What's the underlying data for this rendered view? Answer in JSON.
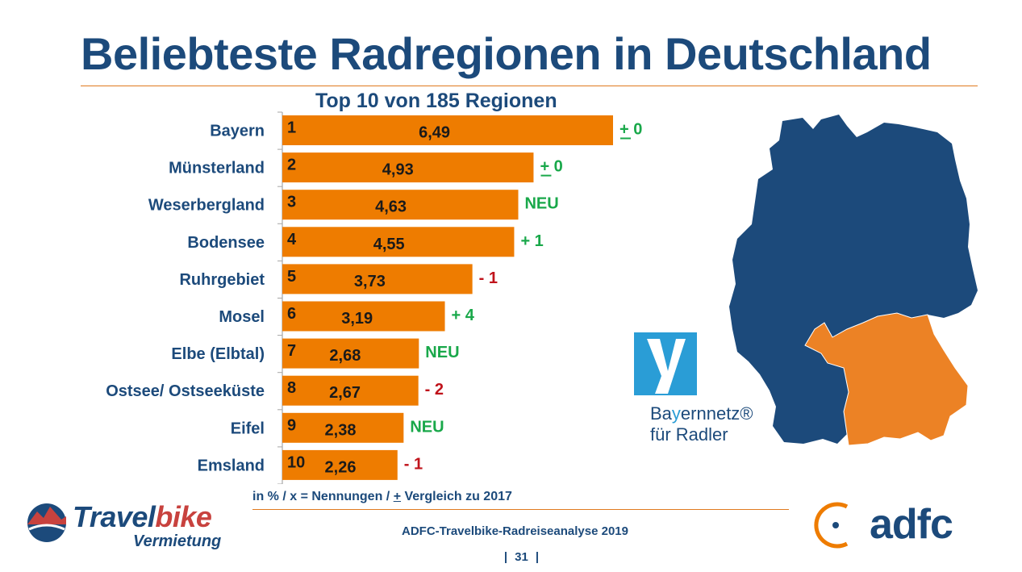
{
  "title": "Beliebteste Radregionen in Deutschland",
  "subtitle": "Top 10 von 185 Regionen",
  "colors": {
    "bar": "#ee7c00",
    "title_blue": "#1c4a7b",
    "positive_green": "#19a84a",
    "negative_red": "#c0131b",
    "map_blue": "#1c4a7b",
    "map_orange": "#ec8225",
    "axis": "#a6a6a6"
  },
  "chart_data": {
    "type": "bar",
    "orientation": "horizontal",
    "categories": [
      "Bayern",
      "Münsterland",
      "Weserbergland",
      "Bodensee",
      "Ruhrgebiet",
      "Mosel",
      "Elbe  (Elbtal)",
      "Ostsee/ Ostseeküste",
      "Eifel",
      "Emsland"
    ],
    "ranks": [
      "1",
      "2",
      "3",
      "4",
      "5",
      "6",
      "7",
      "8",
      "9",
      "10"
    ],
    "values": [
      6.49,
      4.93,
      4.63,
      4.55,
      3.73,
      3.19,
      2.68,
      2.67,
      2.38,
      2.26
    ],
    "value_labels": [
      "6,49",
      "4,93",
      "4,63",
      "4,55",
      "3,73",
      "3,19",
      "2,68",
      "2,67",
      "2,38",
      "2,26"
    ],
    "changes": [
      {
        "text": "+ 0",
        "trend": "same"
      },
      {
        "text": "+ 0",
        "trend": "same"
      },
      {
        "text": "NEU",
        "trend": "new"
      },
      {
        "text": "+ 1",
        "trend": "up"
      },
      {
        "text": "- 1",
        "trend": "down"
      },
      {
        "text": "+ 4",
        "trend": "up"
      },
      {
        "text": "NEU",
        "trend": "new"
      },
      {
        "text": "- 2",
        "trend": "down"
      },
      {
        "text": "NEU",
        "trend": "new"
      },
      {
        "text": "- 1",
        "trend": "down"
      }
    ],
    "xlim": [
      0,
      6.49
    ],
    "grid": false,
    "legend": "none"
  },
  "footnote": {
    "part1": "in % / x = Nennungen / ",
    "part2": "+",
    "part3": " Vergleich zu 2017"
  },
  "source": "ADFC-Travelbike-Radreiseanalyse 2019",
  "page": {
    "left_sep": "|",
    "number": "31",
    "right_sep": "|"
  },
  "logos": {
    "travelbike": {
      "word_a": "Travel",
      "word_b": "bike",
      "sub": "Vermietung"
    },
    "adfc": {
      "word": "adfc"
    },
    "bayernnetz": {
      "line1_a": "Ba",
      "line1_b": "y",
      "line1_c": "ernnetz®",
      "line2": "für Radler"
    }
  },
  "map": {
    "icon": "germany-map",
    "highlight": "bavaria-region"
  }
}
